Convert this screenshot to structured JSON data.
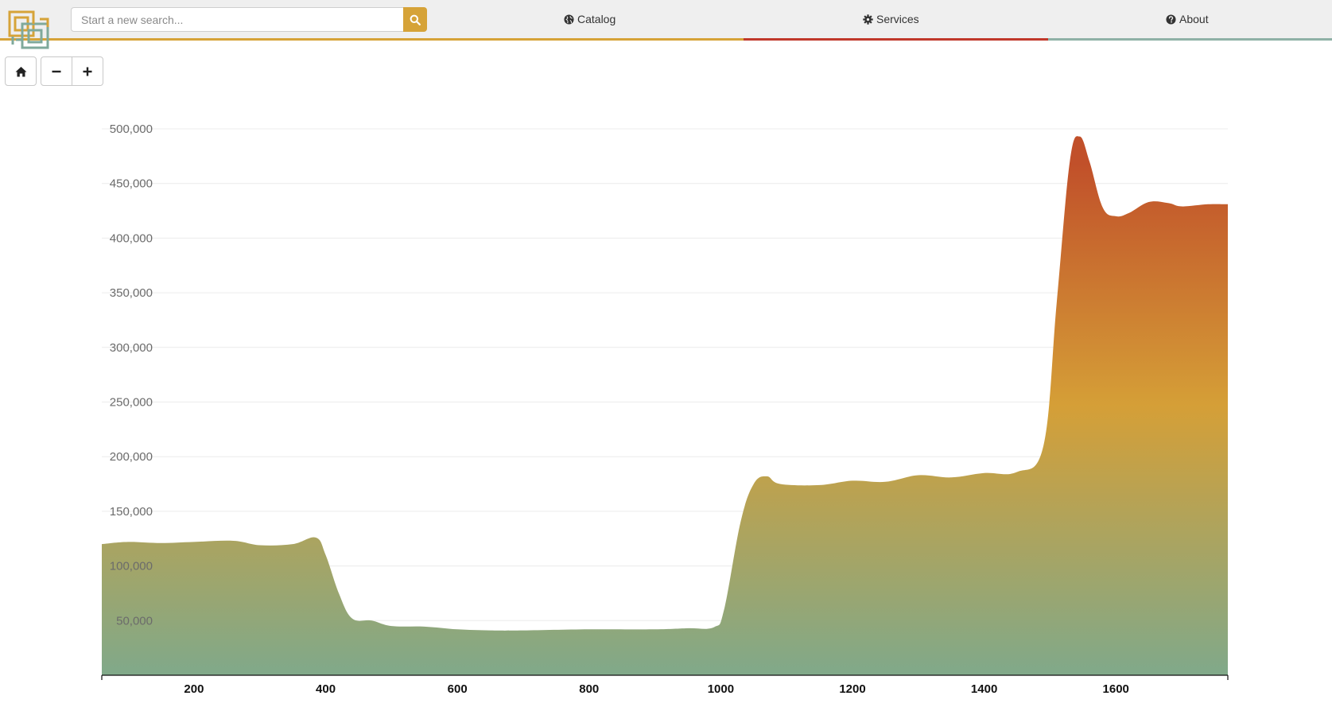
{
  "header": {
    "logo_name": "logo",
    "search": {
      "placeholder": "Start a new search...",
      "value": "",
      "button_icon": "search-icon"
    },
    "nav": [
      {
        "label": "Catalog",
        "icon": "globe-icon"
      },
      {
        "label": "Services",
        "icon": "gear-icon"
      },
      {
        "label": "About",
        "icon": "question-circle-icon"
      }
    ],
    "underline_colors": [
      "#d6a338",
      "#c0392b",
      "#7fa99b"
    ]
  },
  "zoom_controls": [
    {
      "name": "home-button",
      "icon": "home-icon"
    },
    {
      "name": "zoom-out-button",
      "icon": "minus-icon"
    },
    {
      "name": "zoom-in-button",
      "icon": "plus-icon"
    }
  ],
  "chart_data": {
    "type": "area",
    "title": "",
    "xlabel": "",
    "ylabel": "",
    "xlim": [
      60,
      1770
    ],
    "ylim": [
      0,
      500000
    ],
    "y_ticks": [
      50000,
      100000,
      150000,
      200000,
      250000,
      300000,
      350000,
      400000,
      450000,
      500000
    ],
    "y_tick_labels": [
      "50,000",
      "100,000",
      "150,000",
      "200,000",
      "250,000",
      "300,000",
      "350,000",
      "400,000",
      "450,000",
      "500,000"
    ],
    "x_ticks": [
      200,
      400,
      600,
      800,
      1000,
      1200,
      1400,
      1600
    ],
    "x_tick_labels": [
      "200",
      "400",
      "600",
      "800",
      "1000",
      "1200",
      "1400",
      "1600"
    ],
    "grid": true,
    "gradient_colors": [
      "#c1502a",
      "#d59f37",
      "#80a98a"
    ],
    "series": [
      {
        "x": [
          60,
          100,
          150,
          200,
          260,
          300,
          350,
          385,
          400,
          420,
          440,
          470,
          500,
          550,
          600,
          650,
          700,
          800,
          900,
          950,
          990,
          1005,
          1030,
          1050,
          1070,
          1090,
          1150,
          1200,
          1250,
          1300,
          1350,
          1400,
          1450,
          1490,
          1510,
          1530,
          1545,
          1560,
          1580,
          1600,
          1620,
          1650,
          1680,
          1700,
          1740,
          1770
        ],
        "y": [
          120000,
          122000,
          121000,
          122000,
          123000,
          119000,
          120000,
          126000,
          110000,
          75000,
          52000,
          50000,
          45000,
          44500,
          42000,
          41000,
          41000,
          42000,
          42000,
          43000,
          44000,
          60000,
          140000,
          175000,
          182000,
          175000,
          174000,
          178000,
          177000,
          183000,
          181000,
          185000,
          186000,
          210000,
          340000,
          470000,
          493000,
          470000,
          428000,
          420000,
          423000,
          433000,
          432000,
          429000,
          431000,
          431000
        ]
      }
    ]
  }
}
